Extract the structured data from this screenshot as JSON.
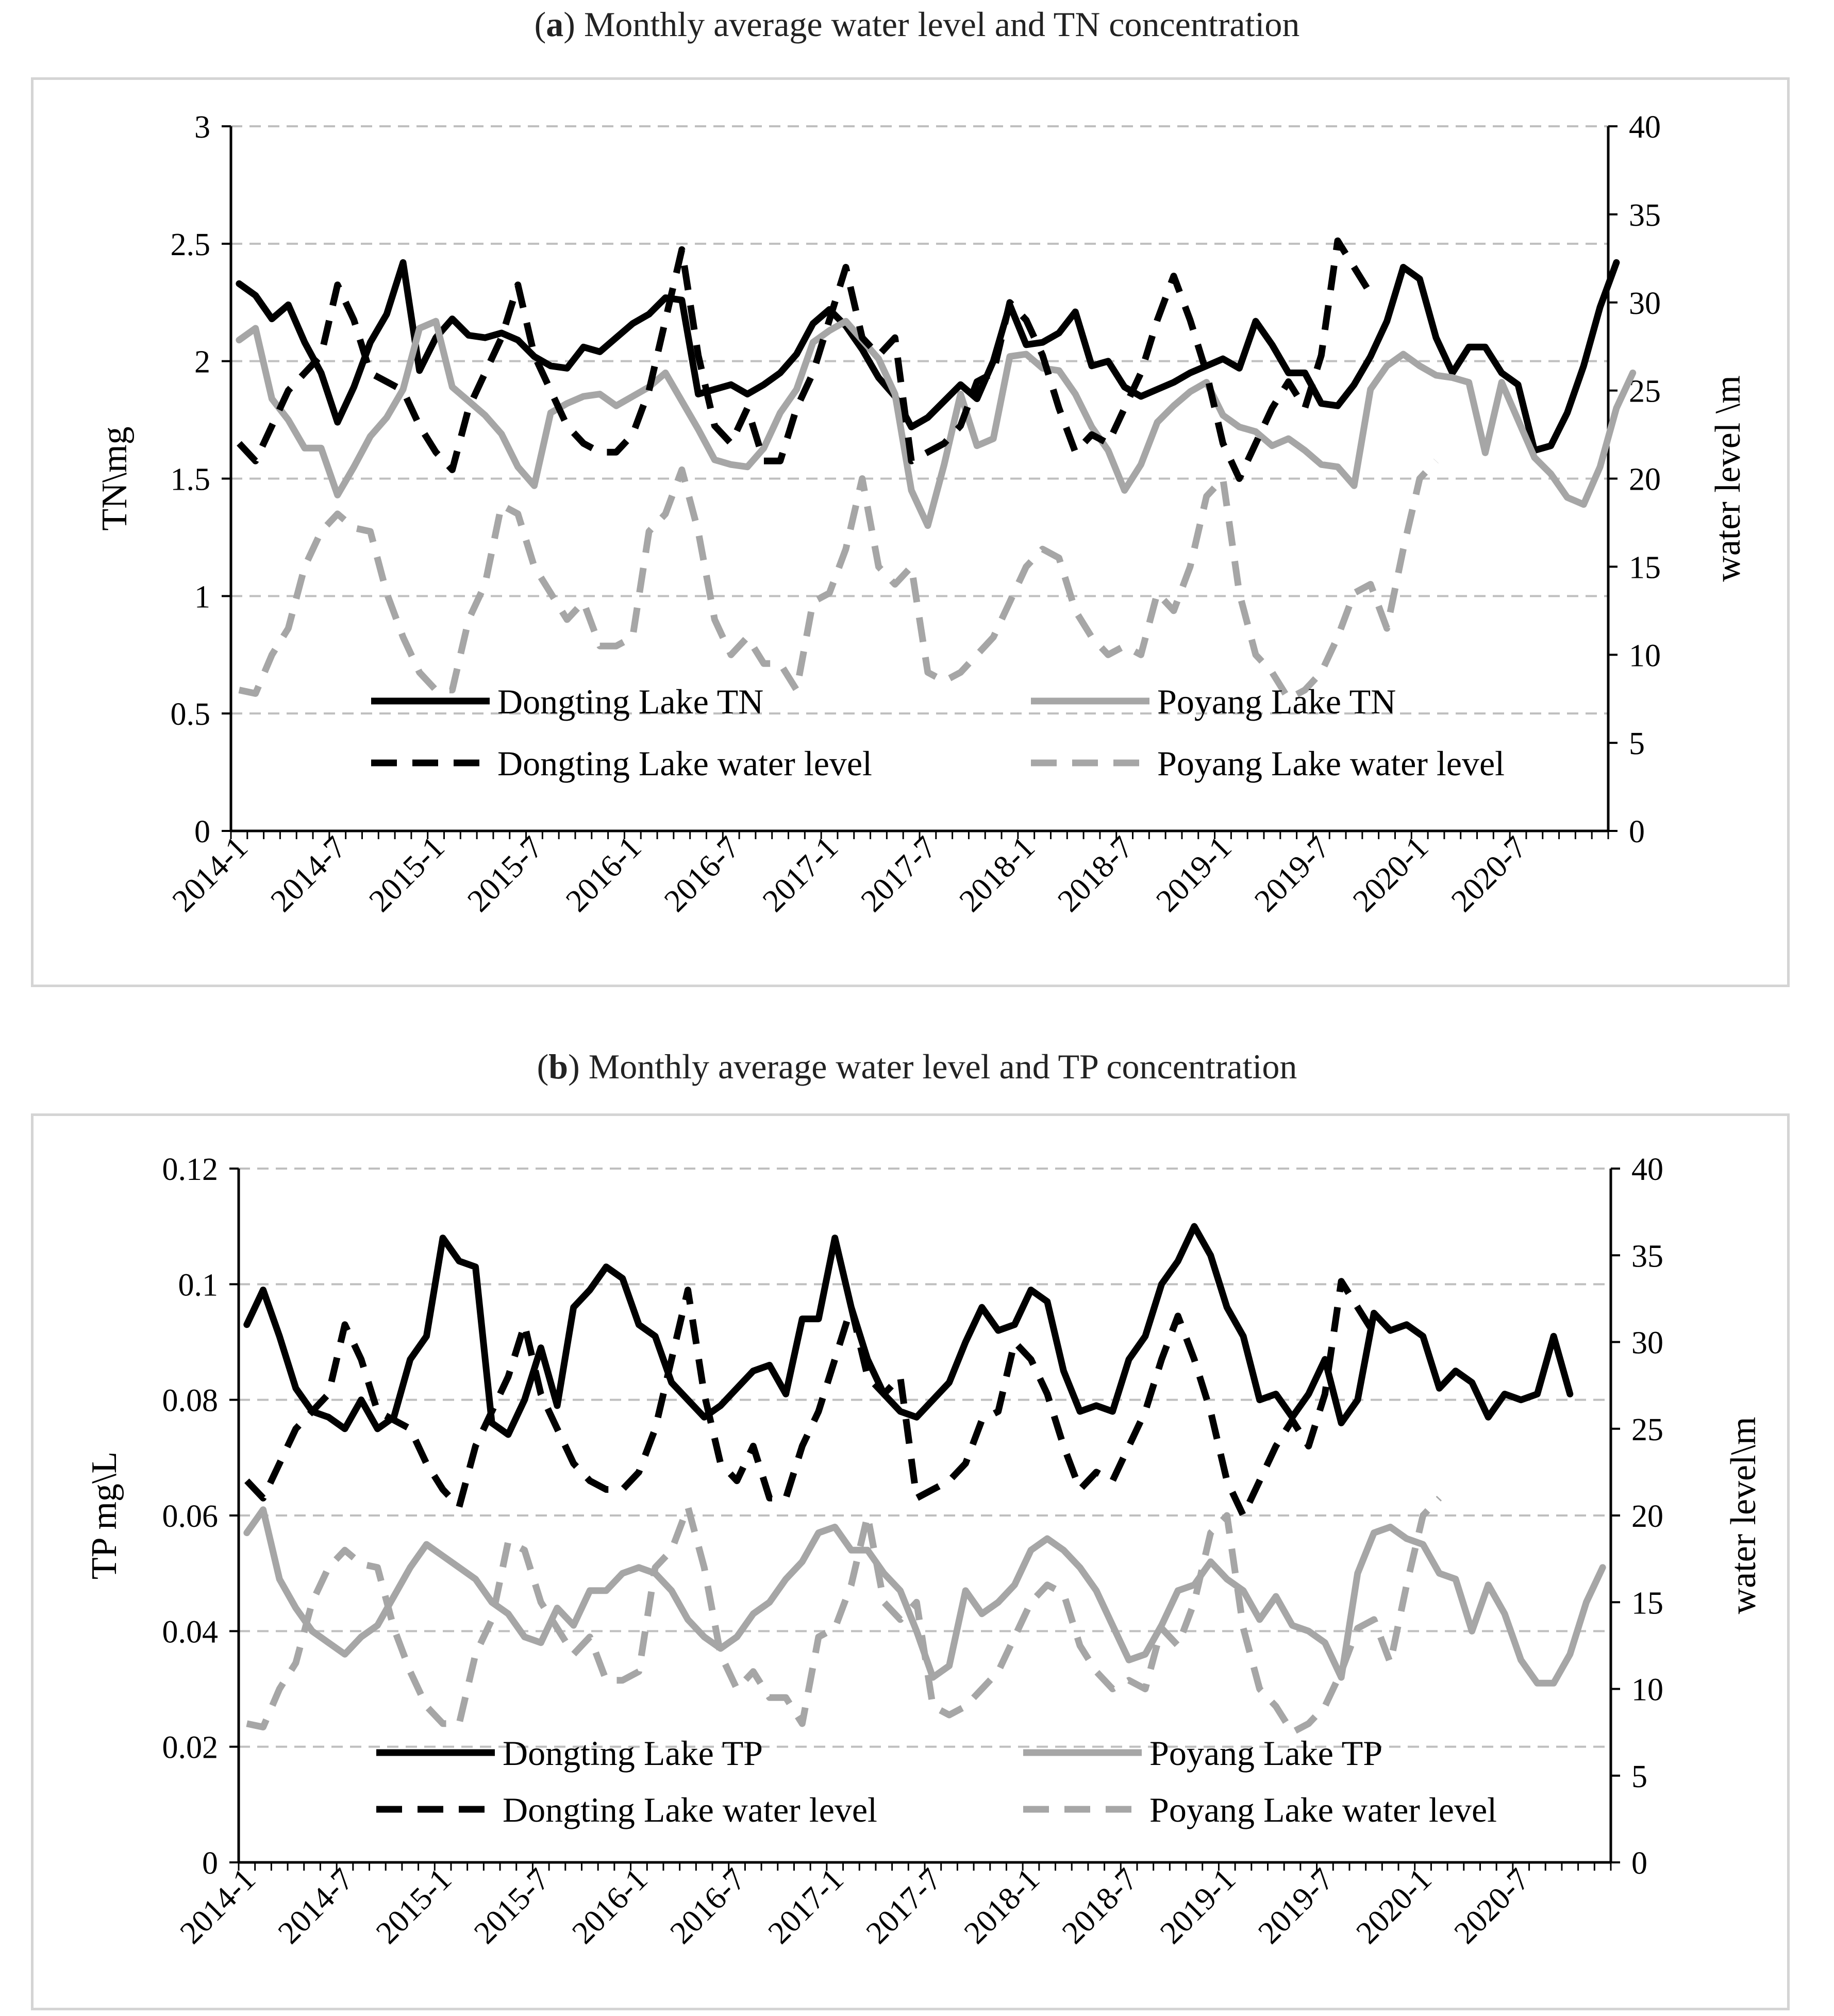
{
  "colors": {
    "dongting": "#000000",
    "poyang": "#a6a6a6",
    "grid": "#bfbfbf",
    "frame": "#d4d4d4"
  },
  "chart_data": [
    {
      "panel_label": "a",
      "title": "Monthly average water level and TN concentration",
      "type": "line",
      "ylabel_left": "TN\\mg",
      "ylabel_right": "water level \\m",
      "ylim_left": [
        0,
        3
      ],
      "ylim_right": [
        0,
        40
      ],
      "yticks_left": [
        "0",
        "0.5",
        "1",
        "1.5",
        "2",
        "2.5",
        "3"
      ],
      "yticks_right": [
        "0",
        "5",
        "10",
        "15",
        "20",
        "25",
        "30",
        "35",
        "40"
      ],
      "xticks": [
        "2014-1",
        "2014-7",
        "2015-1",
        "2015-7",
        "2016-1",
        "2016-7",
        "2017-1",
        "2017-7",
        "2018-1",
        "2018-7",
        "2019-1",
        "2019-7",
        "2020-1",
        "2020-7"
      ],
      "x_start": "2014-1",
      "series": [
        {
          "name": "Dongting Lake TN",
          "axis": "left",
          "style": "solid",
          "color": "dongting",
          "values": [
            2.33,
            2.28,
            2.18,
            2.24,
            2.08,
            1.95,
            1.74,
            1.89,
            2.08,
            2.2,
            2.42,
            1.96,
            2.1,
            2.18,
            2.11,
            2.1,
            2.12,
            2.09,
            2.02,
            1.98,
            1.97,
            2.06,
            2.04,
            2.1,
            2.16,
            2.2,
            2.27,
            2.26,
            1.86,
            1.88,
            1.9,
            1.86,
            1.9,
            1.95,
            2.03,
            2.16,
            2.22,
            2.15,
            2.05,
            1.93,
            1.85,
            1.72,
            1.76,
            1.83,
            1.9,
            1.84,
            2.0,
            2.24,
            2.07,
            2.08,
            2.12,
            2.21,
            1.98,
            2.0,
            1.89,
            1.85,
            1.88,
            1.91,
            1.95,
            1.98,
            2.01,
            1.97,
            2.17,
            2.07,
            1.95,
            1.95,
            1.82,
            1.81,
            1.9,
            2.02,
            2.17,
            2.4,
            2.35,
            2.1,
            1.95,
            2.06,
            2.06,
            1.95,
            1.9,
            1.62,
            1.64,
            1.78,
            1.98,
            2.23,
            2.42
          ]
        },
        {
          "name": "Poyang Lake TN",
          "axis": "left",
          "style": "solid",
          "color": "poyang",
          "values": [
            2.09,
            2.14,
            1.84,
            1.75,
            1.63,
            1.63,
            1.43,
            1.55,
            1.68,
            1.76,
            1.88,
            2.14,
            2.17,
            1.89,
            1.83,
            1.77,
            1.69,
            1.55,
            1.47,
            1.78,
            1.82,
            1.85,
            1.86,
            1.81,
            1.85,
            1.89,
            1.95,
            1.83,
            1.71,
            1.58,
            1.56,
            1.55,
            1.63,
            1.78,
            1.88,
            2.08,
            2.13,
            2.17,
            2.09,
            2.01,
            1.86,
            1.45,
            1.3,
            1.56,
            1.86,
            1.64,
            1.67,
            2.02,
            2.03,
            1.97,
            1.96,
            1.86,
            1.72,
            1.62,
            1.45,
            1.56,
            1.74,
            1.81,
            1.87,
            1.91,
            1.77,
            1.72,
            1.7,
            1.64,
            1.67,
            1.62,
            1.56,
            1.55,
            1.47,
            1.88,
            1.98,
            2.03,
            1.98,
            1.94,
            1.93,
            1.91,
            1.61,
            1.91,
            1.75,
            1.59,
            1.52,
            1.42,
            1.39,
            1.55,
            1.8,
            1.95
          ]
        },
        {
          "name": "Dongting Lake water level",
          "axis": "right",
          "style": "dashed",
          "color": "dongting",
          "values": [
            22,
            21,
            23,
            25,
            26,
            27,
            31,
            29,
            26,
            25.5,
            25,
            23,
            21.5,
            20.5,
            24,
            26,
            28,
            31,
            27,
            25,
            23,
            22,
            21.5,
            21.5,
            22.5,
            25,
            29,
            33,
            27,
            23,
            22,
            24,
            21,
            21,
            24,
            26,
            29,
            32,
            28,
            27,
            28,
            21,
            21.5,
            22,
            23,
            25.5,
            26,
            30,
            29,
            27,
            24,
            21.5,
            22.5,
            22,
            24,
            26,
            29,
            31.5,
            29,
            26,
            22,
            20,
            22,
            24,
            25.5,
            24,
            27,
            33.5,
            32,
            30.5
          ]
        },
        {
          "name": "Poyang Lake water level",
          "axis": "right",
          "style": "dashed",
          "color": "poyang",
          "values": [
            8,
            7.8,
            10,
            11.5,
            15,
            17,
            18,
            17.2,
            17,
            13.5,
            11,
            9,
            8,
            8,
            12,
            14,
            18.5,
            18,
            15,
            13.5,
            12,
            13,
            10.5,
            10.5,
            11,
            17,
            18,
            20.5,
            17,
            12,
            10,
            11,
            9.5,
            9.5,
            8,
            13,
            13.5,
            16,
            20,
            15,
            14,
            15,
            9,
            8.5,
            9,
            10,
            11,
            13,
            15,
            16,
            15.5,
            12.5,
            11,
            10,
            10.5,
            10,
            13.5,
            12.5,
            15,
            19,
            20,
            13.5,
            10,
            9,
            7.5,
            8,
            9,
            11,
            13.5,
            14,
            11.5,
            16,
            20,
            21
          ]
        }
      ],
      "legend": [
        "Dongting Lake TN",
        "Poyang Lake TN",
        "Dongting Lake water level",
        "Poyang Lake water level"
      ]
    },
    {
      "panel_label": "b",
      "title": "Monthly average water level and TP concentration",
      "type": "line",
      "ylabel_left": "TP mg\\L",
      "ylabel_right": "water level\\m",
      "ylim_left": [
        0,
        0.12
      ],
      "ylim_right": [
        0,
        40
      ],
      "yticks_left": [
        "0",
        "0.02",
        "0.04",
        "0.06",
        "0.08",
        "0.1",
        "0.12"
      ],
      "yticks_right": [
        "0",
        "5",
        "10",
        "15",
        "20",
        "25",
        "30",
        "35",
        "40"
      ],
      "xticks": [
        "2014-1",
        "2014-7",
        "2015-1",
        "2015-7",
        "2016-1",
        "2016-7",
        "2017-1",
        "2017-7",
        "2018-1",
        "2018-7",
        "2019-1",
        "2019-7",
        "2020-1",
        "2020-7"
      ],
      "x_start": "2014-1",
      "series": [
        {
          "name": "Dongting Lake TP",
          "axis": "left",
          "style": "solid",
          "color": "dongting",
          "values": [
            0.093,
            0.099,
            0.091,
            0.082,
            0.078,
            0.077,
            0.075,
            0.08,
            0.075,
            0.077,
            0.087,
            0.091,
            0.108,
            0.104,
            0.103,
            0.076,
            0.074,
            0.08,
            0.089,
            0.079,
            0.096,
            0.099,
            0.103,
            0.101,
            0.093,
            0.091,
            0.083,
            0.08,
            0.077,
            0.079,
            0.082,
            0.085,
            0.086,
            0.081,
            0.094,
            0.094,
            0.108,
            0.096,
            0.087,
            0.081,
            0.078,
            0.077,
            0.08,
            0.083,
            0.09,
            0.096,
            0.092,
            0.093,
            0.099,
            0.097,
            0.085,
            0.078,
            0.079,
            0.078,
            0.087,
            0.091,
            0.1,
            0.104,
            0.11,
            0.105,
            0.096,
            0.091,
            0.08,
            0.081,
            0.077,
            0.081,
            0.087,
            0.076,
            0.08,
            0.095,
            0.092,
            0.093,
            0.091,
            0.082,
            0.085,
            0.083,
            0.077,
            0.081,
            0.08,
            0.081,
            0.091,
            0.081
          ]
        },
        {
          "name": "Poyang Lake TP",
          "axis": "left",
          "style": "solid",
          "color": "poyang",
          "values": [
            0.057,
            0.061,
            0.049,
            0.044,
            0.04,
            0.038,
            0.036,
            0.039,
            0.041,
            0.046,
            0.051,
            0.055,
            0.053,
            0.051,
            0.049,
            0.045,
            0.043,
            0.039,
            0.038,
            0.044,
            0.041,
            0.047,
            0.047,
            0.05,
            0.051,
            0.05,
            0.047,
            0.042,
            0.039,
            0.037,
            0.039,
            0.043,
            0.045,
            0.049,
            0.052,
            0.057,
            0.058,
            0.054,
            0.054,
            0.05,
            0.047,
            0.04,
            0.032,
            0.034,
            0.047,
            0.043,
            0.045,
            0.048,
            0.054,
            0.056,
            0.054,
            0.051,
            0.047,
            0.041,
            0.035,
            0.036,
            0.041,
            0.047,
            0.048,
            0.052,
            0.049,
            0.047,
            0.042,
            0.046,
            0.041,
            0.04,
            0.038,
            0.032,
            0.05,
            0.057,
            0.058,
            0.056,
            0.055,
            0.05,
            0.049,
            0.04,
            0.048,
            0.043,
            0.035,
            0.031,
            0.031,
            0.036,
            0.045,
            0.051
          ]
        },
        {
          "name": "Dongting Lake water level",
          "axis": "right",
          "style": "dashed",
          "color": "dongting",
          "values": [
            22,
            21,
            23,
            25,
            26,
            27,
            31,
            29,
            26,
            25.5,
            25,
            23,
            21.5,
            20.5,
            24,
            26,
            28,
            31,
            27,
            25,
            23,
            22,
            21.5,
            21.5,
            22.5,
            25,
            29,
            33,
            27,
            23,
            22,
            24,
            21,
            21,
            24,
            26,
            29,
            32,
            28,
            27,
            28,
            21,
            21.5,
            22,
            23,
            25.5,
            26,
            30,
            29,
            27,
            24,
            21.5,
            22.5,
            22,
            24,
            26,
            29,
            31.5,
            29,
            26,
            22,
            20,
            22,
            24,
            25.5,
            24,
            27,
            33.5,
            32,
            30.5
          ]
        },
        {
          "name": "Poyang Lake water level",
          "axis": "right",
          "style": "dashed",
          "color": "poyang",
          "values": [
            8,
            7.8,
            10,
            11.5,
            15,
            17,
            18,
            17.2,
            17,
            13.5,
            11,
            9,
            8,
            8,
            12,
            14,
            18.5,
            18,
            15,
            13.5,
            12,
            13,
            10.5,
            10.5,
            11,
            17,
            18,
            20.5,
            17,
            12,
            10,
            11,
            9.5,
            9.5,
            8,
            13,
            13.5,
            16,
            20,
            15,
            14,
            15,
            9,
            8.5,
            9,
            10,
            11,
            13,
            15,
            16,
            15.5,
            12.5,
            11,
            10,
            10.5,
            10,
            13.5,
            12.5,
            15,
            19,
            20,
            13.5,
            10,
            9,
            7.5,
            8,
            9,
            11,
            13.5,
            14,
            11.5,
            16,
            20,
            21
          ]
        }
      ],
      "legend": [
        "Dongting Lake TP",
        "Poyang Lake TP",
        "Dongting Lake water level",
        "Poyang Lake water level"
      ]
    }
  ]
}
